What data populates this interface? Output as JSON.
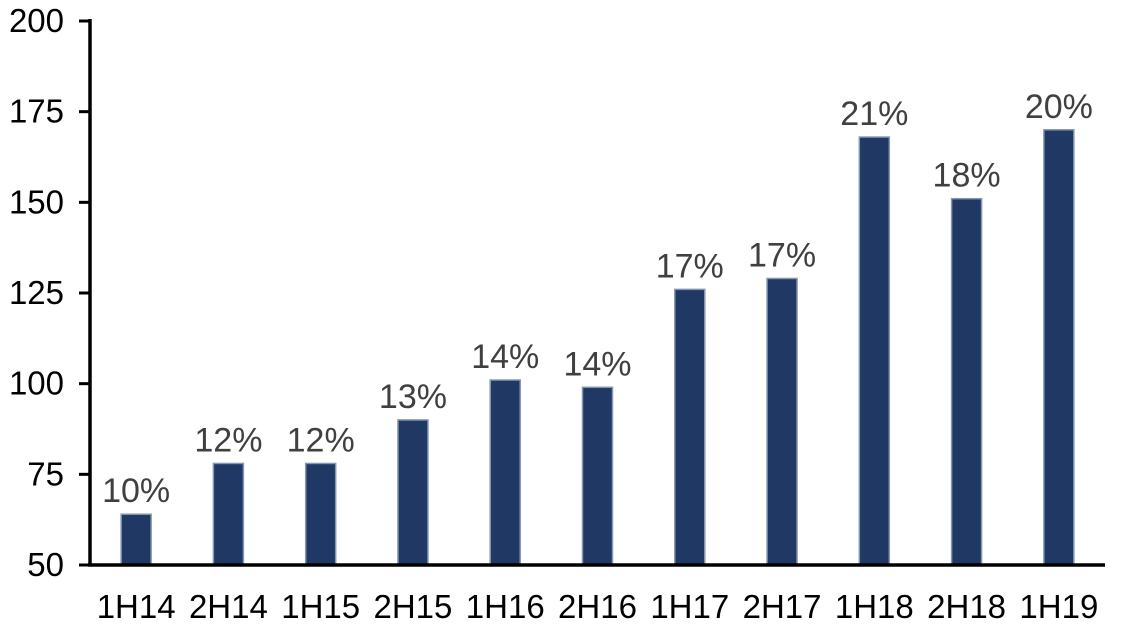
{
  "chart_data": {
    "type": "bar",
    "title": "",
    "xlabel": "",
    "ylabel": "",
    "categories": [
      "1H14",
      "2H14",
      "1H15",
      "2H15",
      "1H16",
      "2H16",
      "1H17",
      "2H17",
      "1H18",
      "2H18",
      "1H19"
    ],
    "series": [
      {
        "name": "value",
        "values": [
          64,
          78,
          78,
          90,
          101,
          99,
          126,
          129,
          168,
          151,
          170
        ]
      }
    ],
    "data_labels": [
      "10%",
      "12%",
      "12%",
      "13%",
      "14%",
      "14%",
      "17%",
      "17%",
      "21%",
      "18%",
      "20%"
    ],
    "ylim": [
      50,
      200
    ],
    "yticks": [
      200,
      175,
      150,
      125,
      100,
      75,
      50
    ],
    "grid": "off",
    "legend": "none",
    "colors": {
      "bar_fill": "#1F3864",
      "bar_border": "#8496B0",
      "data_label": "#404040",
      "axis_label": "#000000",
      "axis_line": "#000000",
      "background": "#FFFFFF"
    }
  }
}
